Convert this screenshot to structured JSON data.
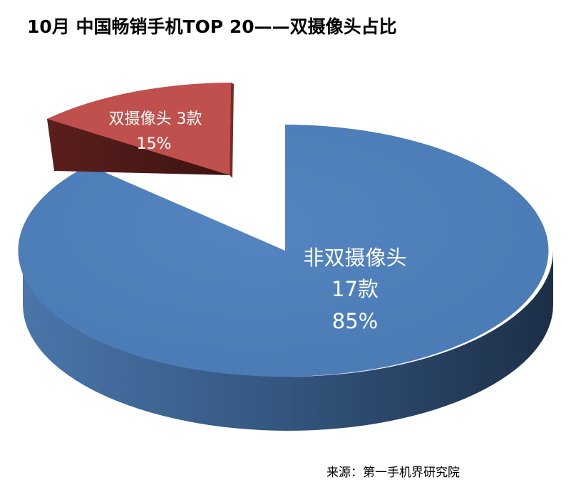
{
  "title": "10月 中国畅销手机TOP 20——双摄像头占比",
  "source": "来源：第一手机界研究院",
  "chart_data": {
    "type": "pie",
    "style": "3d-exploded",
    "title": "10月 中国畅销手机TOP 20——双摄像头占比",
    "slices": [
      {
        "name": "非双摄像头",
        "count_label": "17款",
        "value": 17,
        "percent_label": "85%",
        "color": "#4F81BD",
        "exploded": false
      },
      {
        "name": "双摄像头",
        "count_label": "3款",
        "value": 3,
        "percent_label": "15%",
        "color": "#C0504D",
        "exploded": true
      }
    ],
    "legend": "none"
  }
}
